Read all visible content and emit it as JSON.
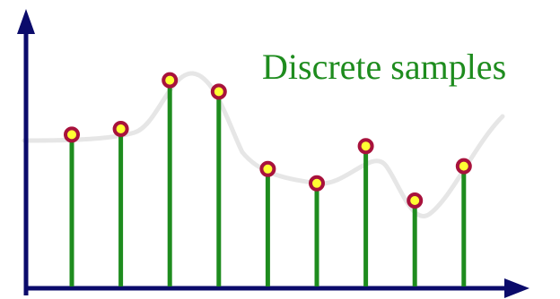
{
  "caption": "Discrete samples",
  "colors": {
    "axis": "#0b0b6b",
    "stem": "#1e8c1e",
    "curve": "#e6e6e6",
    "marker_fill": "#ffff33",
    "marker_stroke": "#a8123c",
    "caption": "#1e8c1e"
  },
  "samples": [
    0.53,
    0.55,
    0.72,
    0.68,
    0.41,
    0.36,
    0.49,
    0.3,
    0.42
  ]
}
